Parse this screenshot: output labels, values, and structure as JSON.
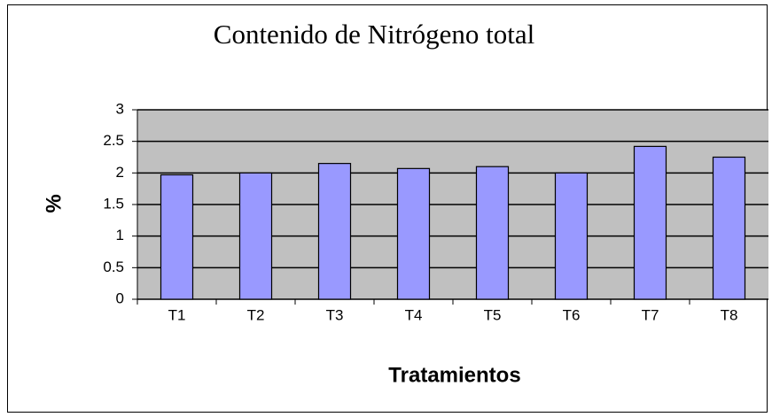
{
  "chart_data": {
    "type": "bar",
    "title": "Contenido de Nitrógeno total",
    "y_label": "%",
    "x_label": "Tratamientos",
    "categories": [
      "T1",
      "T2",
      "T3",
      "T4",
      "T5",
      "T6",
      "T7",
      "T8"
    ],
    "values": [
      1.97,
      2.0,
      2.15,
      2.07,
      2.1,
      2.0,
      2.42,
      2.25
    ],
    "color": "#9999ff",
    "ylim": [
      0,
      3
    ],
    "yticks": [
      0,
      0.5,
      1,
      1.5,
      2,
      2.5,
      3
    ],
    "grid": true
  }
}
